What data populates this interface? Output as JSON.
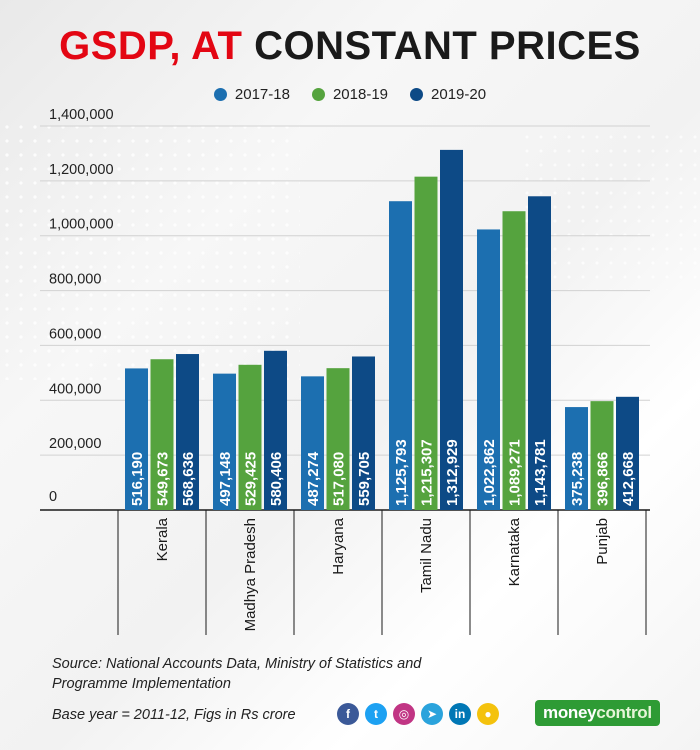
{
  "title_part1": "GSDP,",
  "title_part2": "AT",
  "title_part3": "CONSTANT PRICES",
  "footer": {
    "source": "Source: National Accounts Data, Ministry of Statistics and Programme Implementation",
    "base": "Base year  = 2011-12, Figs in Rs crore"
  },
  "brand": {
    "part1": "money",
    "part2": "control"
  },
  "social_icons": [
    {
      "name": "facebook-icon",
      "glyph": "f",
      "color": "#3b5998"
    },
    {
      "name": "twitter-icon",
      "glyph": "t",
      "color": "#1da1f2"
    },
    {
      "name": "instagram-icon",
      "glyph": "◎",
      "color": "#c13584"
    },
    {
      "name": "telegram-icon",
      "glyph": "➤",
      "color": "#2aa3dc"
    },
    {
      "name": "linkedin-icon",
      "glyph": "in",
      "color": "#0077b5"
    },
    {
      "name": "koo-icon",
      "glyph": "●",
      "color": "#f4c20d"
    }
  ],
  "chart_data": {
    "type": "bar",
    "title": "GSDP, AT CONSTANT PRICES",
    "categories": [
      "Kerala",
      "Madhya Pradesh",
      "Haryana",
      "Tamil Nadu",
      "Karnataka",
      "Punjab"
    ],
    "series": [
      {
        "name": "2017-18",
        "color": "#1c6fb0",
        "values": [
          516190,
          497148,
          487274,
          1125793,
          1022862,
          375238
        ]
      },
      {
        "name": "2018-19",
        "color": "#55a33e",
        "values": [
          549673,
          529425,
          517080,
          1215307,
          1089271,
          396866
        ]
      },
      {
        "name": "2019-20",
        "color": "#0d4a86",
        "values": [
          568636,
          580406,
          559705,
          1312929,
          1143781,
          412668
        ]
      }
    ],
    "ylim": [
      0,
      1400000
    ],
    "yticks": [
      0,
      200000,
      400000,
      600000,
      800000,
      1000000,
      1200000,
      1400000
    ],
    "ytick_labels": [
      "0",
      "200,000",
      "400,000",
      "600,000",
      "800,000",
      "1,000,000",
      "1,200,000",
      "1,400,000"
    ],
    "value_labels": [
      [
        "516,190",
        "497,148",
        "487,274",
        "1,125,793",
        "1,022,862",
        "375,238"
      ],
      [
        "549,673",
        "529,425",
        "517,080",
        "1,215,307",
        "1,089,271",
        "396,866"
      ],
      [
        "568,636",
        "580,406",
        "559,705",
        "1,312,929",
        "1,143,781",
        "412,668"
      ]
    ],
    "grid": true,
    "legend_position": "top-center"
  }
}
